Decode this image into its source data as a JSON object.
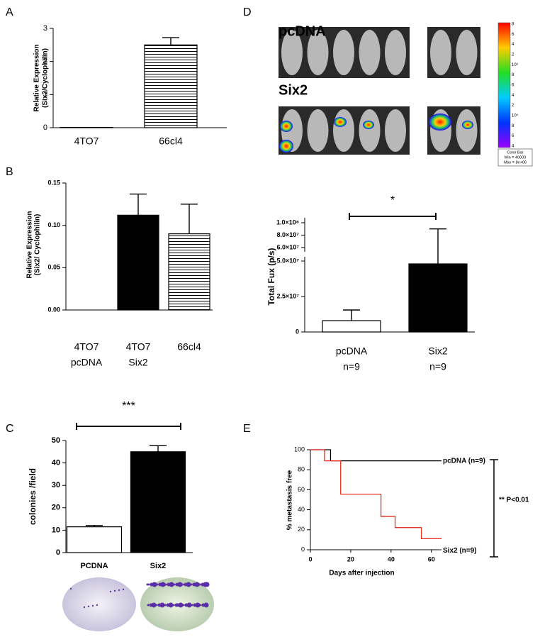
{
  "imaging": {
    "panel": "D",
    "labels": [
      "pcDNA",
      "Six2"
    ],
    "colorbar": {
      "ticks": [
        "8",
        "6",
        "4",
        "2",
        "10⁶",
        "8",
        "6",
        "4",
        "2",
        "10⁵",
        "8",
        "6",
        "4"
      ],
      "box": [
        "Color Bar",
        "Min = 40000",
        "Max = 8e+06"
      ]
    }
  },
  "chart_data": [
    {
      "type": "bar",
      "panel": "A",
      "ylabel": [
        "Relative Expression",
        "(Six2/Cyclophilin)"
      ],
      "categories": [
        [
          "4TO7"
        ],
        [
          "66cl4"
        ]
      ],
      "values": [
        0.01,
        2.5
      ],
      "errors": [
        0,
        0.22
      ],
      "fills": [
        "white",
        "hatch"
      ],
      "ylim": [
        0,
        3
      ],
      "yticks": [
        0,
        1,
        2,
        3
      ]
    },
    {
      "type": "bar",
      "panel": "B",
      "ylabel": [
        "Relative Expression",
        "(Six2/ Cyclophilin)"
      ],
      "categories": [
        [
          "4TO7",
          "pcDNA"
        ],
        [
          "4TO7",
          "Six2"
        ],
        [
          "66cl4"
        ]
      ],
      "values": [
        0,
        0.112,
        0.09
      ],
      "errors": [
        0,
        0.025,
        0.035
      ],
      "fills": [
        "white",
        "black",
        "hatch"
      ],
      "ylim": [
        0,
        0.15
      ],
      "yticks": [
        {
          "value": 0,
          "label": "0.00"
        },
        0.05,
        {
          "value": 0.1,
          "label": "0.10"
        },
        0.15
      ]
    },
    {
      "type": "bar",
      "panel": "C",
      "ylabel": [
        "colonies /field"
      ],
      "categories": [
        [
          "PCDNA"
        ],
        [
          "Six2"
        ]
      ],
      "values": [
        11.5,
        45
      ],
      "errors": [
        0.6,
        2.7
      ],
      "fills": [
        "white",
        "black"
      ],
      "ylim": [
        0,
        50
      ],
      "yticks": [
        0,
        10,
        20,
        30,
        40,
        50
      ],
      "annotation": "***"
    },
    {
      "type": "bar",
      "ylabel": [
        "Total Fux (p/s)"
      ],
      "categories": [
        [
          "pcDNA",
          "n=9"
        ],
        [
          "Six2",
          "n=9"
        ]
      ],
      "values": [
        8000000,
        48000000
      ],
      "errors": [
        7500000,
        42000000
      ],
      "fills": [
        "white",
        "black"
      ],
      "ylim": [
        0,
        50000000
      ],
      "yticks": [
        0,
        {
          "value": 25000000,
          "label": "2.5×10⁷"
        },
        {
          "value": 50000000,
          "label": "5.0×10⁷"
        }
      ],
      "ylim_upper": [
        53000000,
        108000000
      ],
      "yticks_upper": [
        {
          "value": 60000000,
          "label": "6.0×10⁷"
        },
        {
          "value": 80000000,
          "label": "8.0×10⁷"
        },
        {
          "value": 100000000,
          "label": "1.0×10⁸"
        }
      ],
      "annotation": "*"
    },
    {
      "type": "step",
      "panel": "E",
      "xlabel": "Days after injection",
      "ylabel": [
        "% metastasis free"
      ],
      "xlim": [
        0,
        65
      ],
      "xticks": [
        0,
        20,
        40,
        60
      ],
      "ylim": [
        0,
        100
      ],
      "yticks": [
        0,
        20,
        40,
        60,
        80,
        100
      ],
      "series": [
        {
          "name": "pcDNA (n=9)",
          "color": "#000000",
          "x": [
            0,
            10,
            65
          ],
          "values": [
            100,
            88.9,
            88.9
          ]
        },
        {
          "name": "Six2 (n=9)",
          "color": "#e8311f",
          "x": [
            0,
            7,
            15,
            35,
            42,
            55,
            65
          ],
          "values": [
            100,
            88.9,
            55.6,
            33.3,
            22.2,
            11.1,
            11.1
          ]
        }
      ],
      "annotation": "** P<0.01"
    }
  ]
}
